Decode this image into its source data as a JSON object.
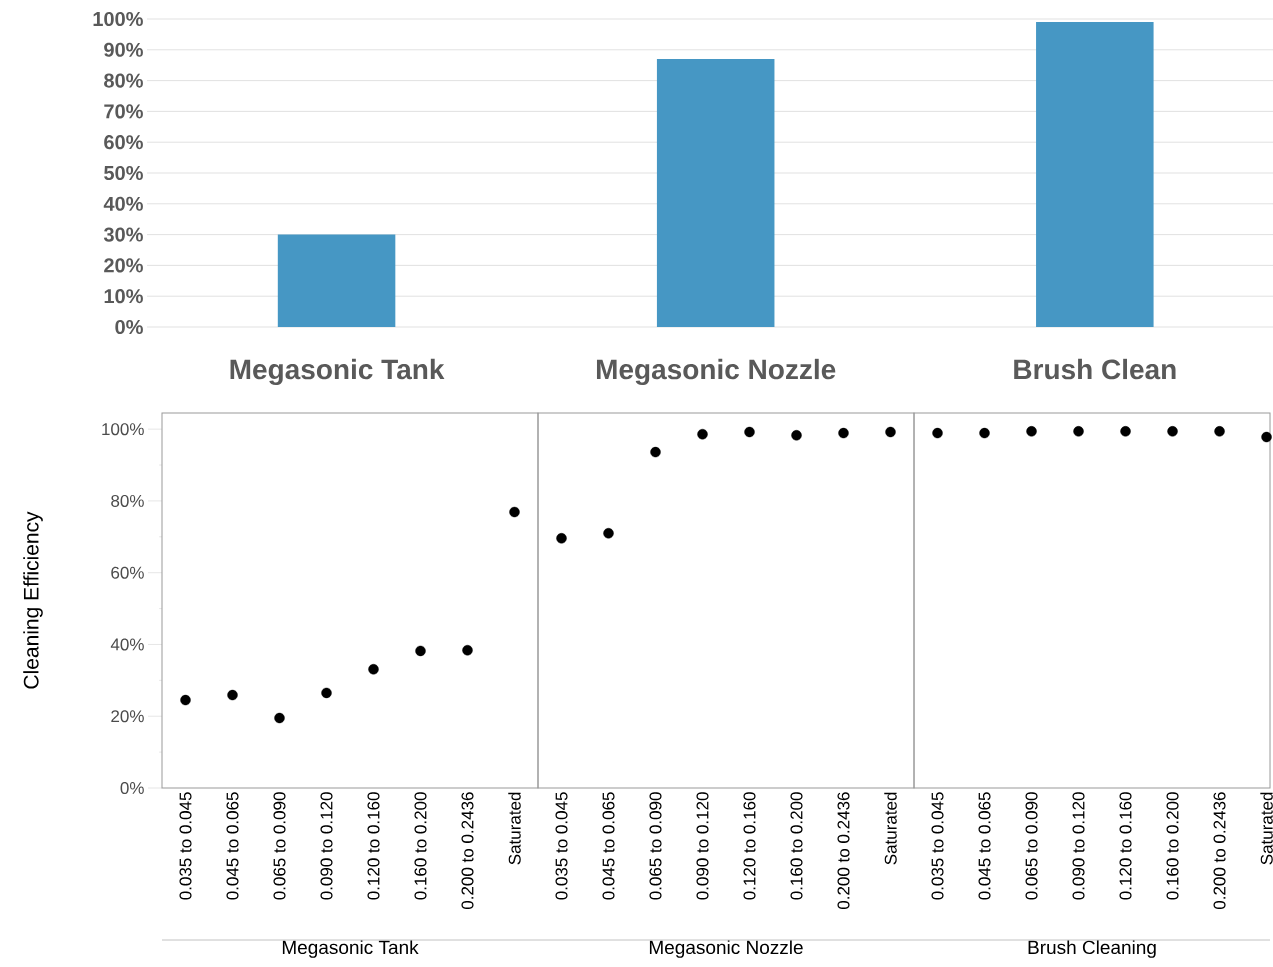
{
  "chart_data": [
    {
      "type": "bar",
      "categories": [
        "Megasonic Tank",
        "Megasonic Nozzle",
        "Brush Clean"
      ],
      "values": [
        30,
        87,
        99
      ],
      "color": "#4697c4",
      "ylim": [
        0,
        100
      ],
      "yticks": [
        {
          "value": 0,
          "label": "0%"
        },
        {
          "value": 10,
          "label": "10%"
        },
        {
          "value": 20,
          "label": "20%"
        },
        {
          "value": 30,
          "label": "30%"
        },
        {
          "value": 40,
          "label": "40%"
        },
        {
          "value": 50,
          "label": "50%"
        },
        {
          "value": 60,
          "label": "60%"
        },
        {
          "value": 70,
          "label": "70%"
        },
        {
          "value": 80,
          "label": "80%"
        },
        {
          "value": 90,
          "label": "90%"
        },
        {
          "value": 100,
          "label": "100%"
        }
      ],
      "grid": "y"
    },
    {
      "type": "scatter",
      "xlabel": "Megasonic Tank",
      "ylabel": "Cleaning Efficiency",
      "categories": [
        "0.035 to 0.045",
        "0.045 to 0.065",
        "0.065 to 0.090",
        "0.090 to 0.120",
        "0.120 to 0.160",
        "0.160 to 0.200",
        "0.200 to 0.2436",
        "Saturated"
      ],
      "values": [
        24.5,
        25.9,
        19.5,
        26.5,
        33.1,
        38.2,
        38.4,
        76.9
      ],
      "color": "#000000",
      "ylim": [
        0,
        104.5
      ],
      "yticks": [
        {
          "value": 0,
          "label": "0%"
        },
        {
          "value": 20,
          "label": "20%"
        },
        {
          "value": 40,
          "label": "40%"
        },
        {
          "value": 60,
          "label": "60%"
        },
        {
          "value": 80,
          "label": "80%"
        },
        {
          "value": 100,
          "label": "100%"
        }
      ]
    },
    {
      "type": "scatter",
      "xlabel": "Megasonic Nozzle",
      "categories": [
        "0.035 to 0.045",
        "0.045 to 0.065",
        "0.065 to 0.090",
        "0.090 to 0.120",
        "0.120 to 0.160",
        "0.160 to 0.200",
        "0.200 to 0.2436",
        "Saturated"
      ],
      "values": [
        69.6,
        71.0,
        93.6,
        98.6,
        99.2,
        98.3,
        98.9,
        99.2
      ],
      "color": "#000000",
      "ylim": [
        0,
        104.5
      ],
      "tick_labels": "x"
    },
    {
      "type": "scatter",
      "xlabel": "Brush Cleaning",
      "categories": [
        "0.035 to 0.045",
        "0.045 to 0.065",
        "0.065 to 0.090",
        "0.090 to 0.120",
        "0.120 to 0.160",
        "0.160 to 0.200",
        "0.200 to 0.2436",
        "Saturated"
      ],
      "values": [
        98.9,
        98.9,
        99.4,
        99.4,
        99.4,
        99.4,
        99.4,
        97.8
      ],
      "color": "#000000",
      "ylim": [
        0,
        104.5
      ],
      "tick_labels": "x"
    }
  ]
}
